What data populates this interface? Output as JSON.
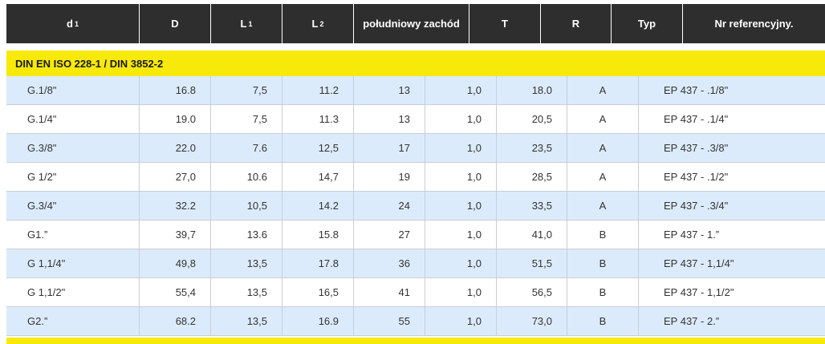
{
  "header": {
    "d1": {
      "main": "d",
      "sub": "1"
    },
    "D": "D",
    "L1": {
      "main": "L",
      "sub": "1"
    },
    "L2": {
      "main": "L",
      "sub": "2"
    },
    "sw": "południowy zachód",
    "T": "T",
    "R": "R",
    "typ": "Typ",
    "ref": "Nr referencyjny."
  },
  "section_title": "DIN EN ISO 228-1 / DIN 3852-2",
  "rows": [
    [
      "G.1/8\"",
      "16.8",
      "7,5",
      "11.2",
      "13",
      "1,0",
      "18.0",
      "A",
      "EP 437 - .1/8\""
    ],
    [
      "G.1/4\"",
      "19.0",
      "7,5",
      "11.3",
      "13",
      "1,0",
      "20,5",
      "A",
      "EP 437 - .1/4\""
    ],
    [
      "G.3/8\"",
      "22.0",
      "7.6",
      "12,5",
      "17",
      "1,0",
      "23,5",
      "A",
      "EP 437 - .3/8\""
    ],
    [
      "G 1/2\"",
      "27,0",
      "10.6",
      "14,7",
      "19",
      "1,0",
      "28,5",
      "A",
      "EP 437 - .1/2\""
    ],
    [
      "G.3/4\"",
      "32.2",
      "10,5",
      "14.2",
      "24",
      "1,0",
      "33,5",
      "A",
      "EP 437 - .3/4\""
    ],
    [
      "G1.”",
      "39,7",
      "13.6",
      "15.8",
      "27",
      "1,0",
      "41,0",
      "B",
      "EP 437 - 1.”"
    ],
    [
      "G 1,1/4\"",
      "49,8",
      "13,5",
      "17.8",
      "36",
      "1,0",
      "51,5",
      "B",
      "EP 437 - 1,1/4\""
    ],
    [
      "G 1,1/2\"",
      "55,4",
      "13,5",
      "16,5",
      "41",
      "1,0",
      "56,5",
      "B",
      "EP 437 - 1,1/2\""
    ],
    [
      "G2.”",
      "68.2",
      "13,5",
      "16.9",
      "55",
      "1,0",
      "73,0",
      "B",
      "EP 437 - 2.”"
    ]
  ]
}
